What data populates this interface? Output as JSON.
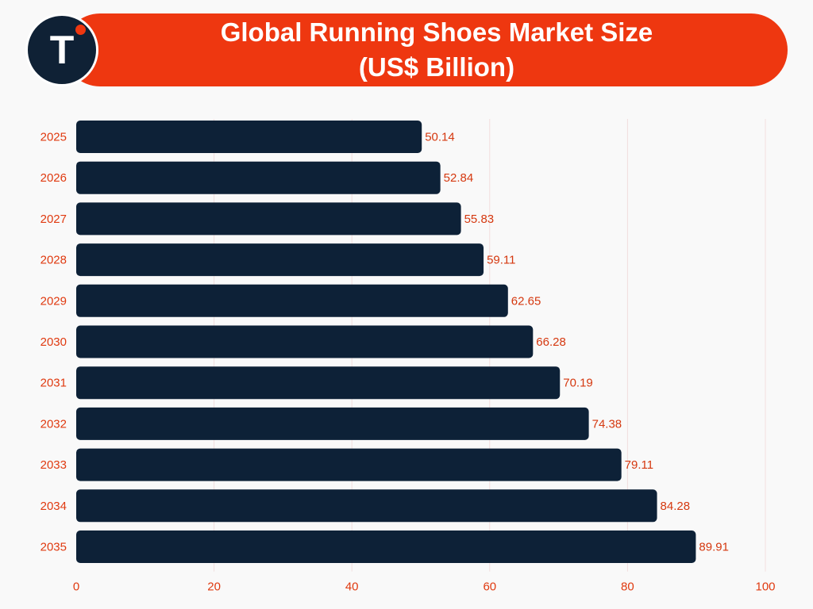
{
  "header": {
    "title_line1": "Global Running Shoes Market Size",
    "title_line2": "(US$ Billion)",
    "logo_letter": "T"
  },
  "chart_data": {
    "type": "bar",
    "orientation": "horizontal",
    "title": "Global Running Shoes Market Size (US$ Billion)",
    "categories": [
      "2025",
      "2026",
      "2027",
      "2028",
      "2029",
      "2030",
      "2031",
      "2032",
      "2033",
      "2034",
      "2035"
    ],
    "values": [
      50.14,
      52.84,
      55.83,
      59.11,
      62.65,
      66.28,
      70.19,
      74.38,
      79.11,
      84.28,
      89.91
    ],
    "value_labels": [
      "50.14",
      "52.84",
      "55.83",
      "59.11",
      "62.65",
      "66.28",
      "70.19",
      "74.38",
      "79.11",
      "84.28",
      "89.91"
    ],
    "xlim": [
      0,
      100
    ],
    "xticks": [
      0,
      20,
      40,
      60,
      80,
      100
    ],
    "grid": true,
    "xlabel": "",
    "ylabel": ""
  },
  "colors": {
    "bar": "#0d2137",
    "accent": "#ee3710",
    "grid": "#f2dede",
    "text": "#e03a10"
  }
}
